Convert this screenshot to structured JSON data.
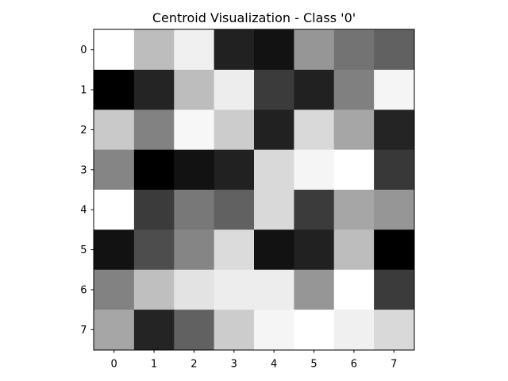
{
  "chart_data": {
    "type": "heatmap",
    "title": "Centroid Visualization - Class '0'",
    "xlabel": "",
    "ylabel": "",
    "colormap": "gray",
    "x_ticks": [
      "0",
      "1",
      "2",
      "3",
      "4",
      "5",
      "6",
      "7"
    ],
    "y_ticks": [
      "0",
      "1",
      "2",
      "3",
      "4",
      "5",
      "6",
      "7"
    ],
    "value_range": [
      0,
      1
    ],
    "values": [
      [
        1.0,
        0.74,
        0.94,
        0.13,
        0.07,
        0.59,
        0.45,
        0.38
      ],
      [
        0.0,
        0.14,
        0.74,
        0.93,
        0.23,
        0.13,
        0.5,
        0.96
      ],
      [
        0.79,
        0.51,
        0.97,
        0.8,
        0.13,
        0.85,
        0.65,
        0.14
      ],
      [
        0.52,
        0.0,
        0.07,
        0.13,
        0.85,
        0.96,
        1.0,
        0.22
      ],
      [
        1.0,
        0.23,
        0.47,
        0.38,
        0.85,
        0.23,
        0.65,
        0.59
      ],
      [
        0.07,
        0.3,
        0.52,
        0.86,
        0.07,
        0.13,
        0.74,
        0.0
      ],
      [
        0.51,
        0.75,
        0.89,
        0.93,
        0.93,
        0.59,
        1.0,
        0.23
      ],
      [
        0.65,
        0.14,
        0.38,
        0.8,
        0.96,
        1.0,
        0.94,
        0.85
      ]
    ],
    "grid": false,
    "colorbar": false
  }
}
